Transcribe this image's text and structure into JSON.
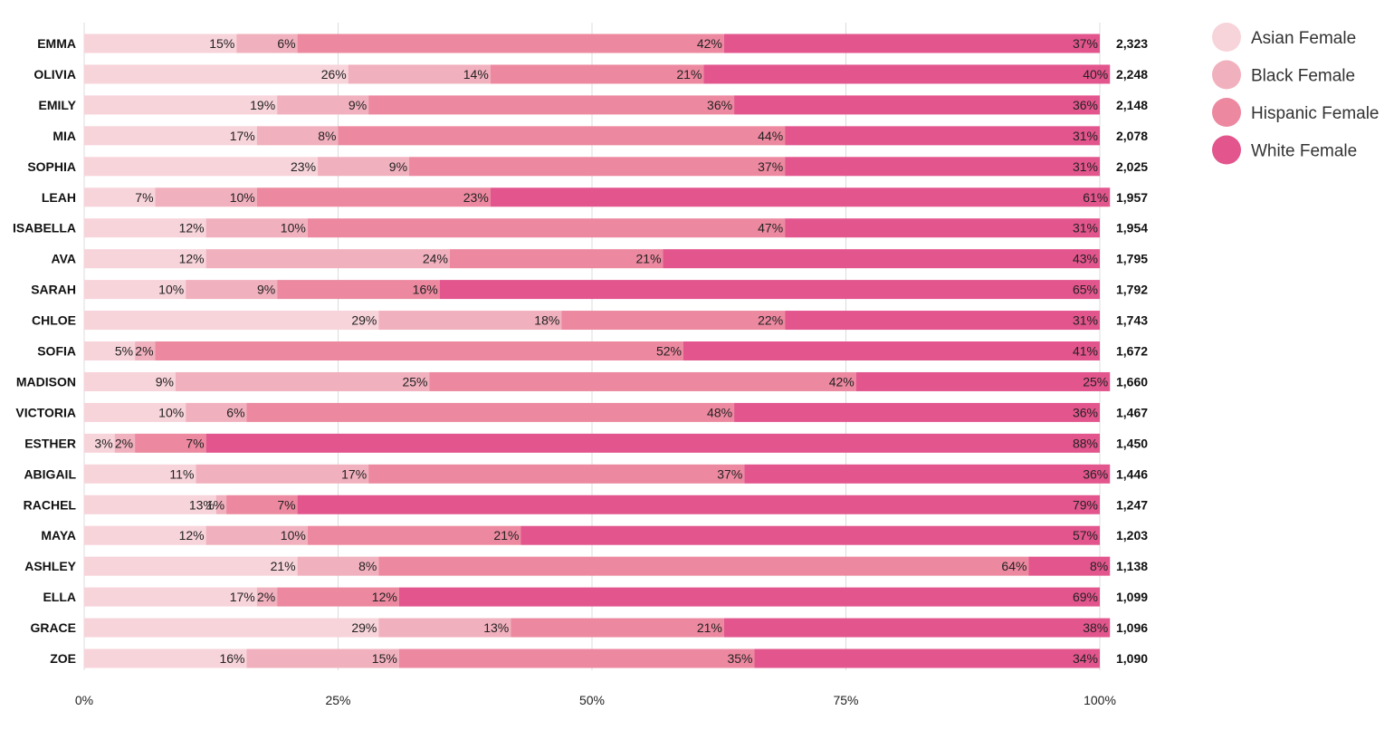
{
  "chart_data": {
    "type": "bar",
    "orientation": "horizontal",
    "stacked": "percent",
    "categories": [
      "EMMA",
      "OLIVIA",
      "EMILY",
      "MIA",
      "SOPHIA",
      "LEAH",
      "ISABELLA",
      "AVA",
      "SARAH",
      "CHLOE",
      "SOFIA",
      "MADISON",
      "VICTORIA",
      "ESTHER",
      "ABIGAIL",
      "RACHEL",
      "MAYA",
      "ASHLEY",
      "ELLA",
      "GRACE",
      "ZOE"
    ],
    "series": [
      {
        "name": "Asian Female",
        "color": "#f7d3da",
        "values": [
          15,
          26,
          19,
          17,
          23,
          7,
          12,
          12,
          10,
          29,
          5,
          9,
          10,
          3,
          11,
          13,
          12,
          21,
          17,
          29,
          16
        ]
      },
      {
        "name": "Black Female",
        "color": "#f1b0bd",
        "values": [
          6,
          14,
          9,
          8,
          9,
          10,
          10,
          24,
          9,
          18,
          2,
          25,
          6,
          2,
          17,
          1,
          10,
          8,
          2,
          13,
          15
        ]
      },
      {
        "name": "Hispanic Female",
        "color": "#ec889f",
        "values": [
          42,
          21,
          36,
          44,
          37,
          23,
          47,
          21,
          16,
          22,
          52,
          42,
          48,
          7,
          37,
          7,
          21,
          64,
          12,
          21,
          35
        ]
      },
      {
        "name": "White Female",
        "color": "#e2558d",
        "values": [
          37,
          40,
          36,
          31,
          31,
          61,
          31,
          43,
          65,
          31,
          41,
          25,
          36,
          88,
          36,
          79,
          57,
          8,
          69,
          38,
          34
        ]
      }
    ],
    "totals": [
      "2,323",
      "2,248",
      "2,148",
      "2,078",
      "2,025",
      "1,957",
      "1,954",
      "1,795",
      "1,792",
      "1,743",
      "1,672",
      "1,660",
      "1,467",
      "1,450",
      "1,446",
      "1,247",
      "1,203",
      "1,138",
      "1,099",
      "1,096",
      "1,090"
    ],
    "x_ticks": [
      "0%",
      "25%",
      "50%",
      "75%",
      "100%"
    ],
    "xlim": [
      0,
      100
    ],
    "grid": true,
    "legend_position": "top-right",
    "title": "",
    "xlabel": "",
    "ylabel": ""
  }
}
